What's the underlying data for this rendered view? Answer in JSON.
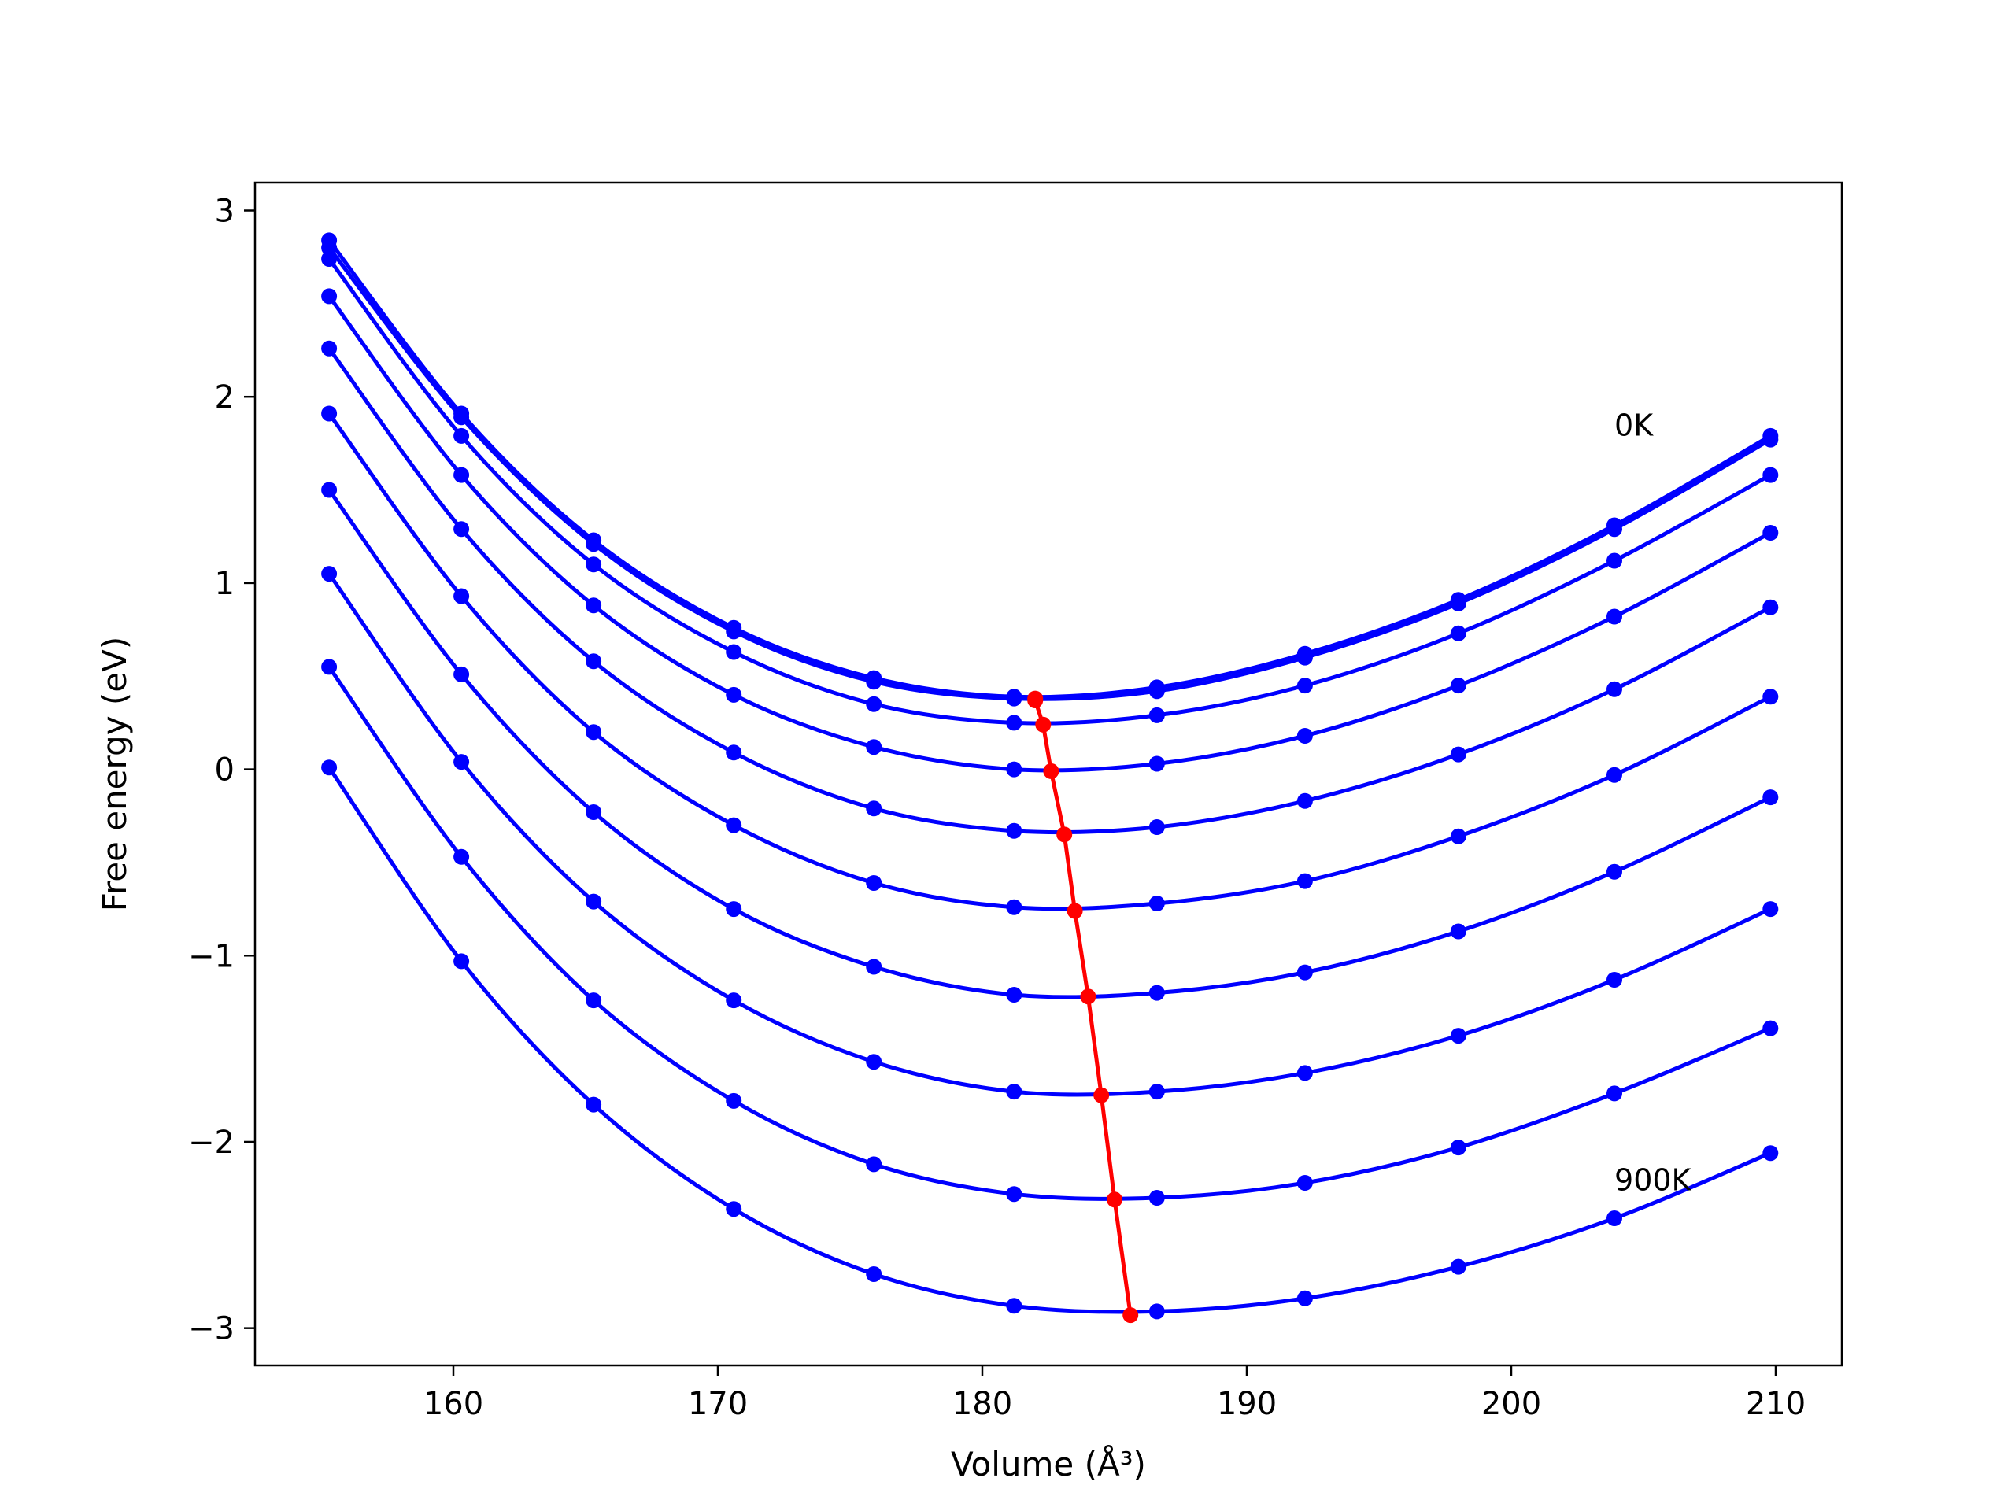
{
  "chart_data": {
    "type": "line",
    "title": "",
    "xlabel": "Volume (Å³)",
    "ylabel": "Free energy (eV)",
    "xlim": [
      152.5,
      212.5
    ],
    "ylim": [
      -3.2,
      3.15
    ],
    "xticks": [
      160,
      170,
      180,
      190,
      200,
      210
    ],
    "yticks": [
      -3,
      -2,
      -1,
      0,
      1,
      2,
      3
    ],
    "xtick_labels": [
      "160",
      "170",
      "180",
      "190",
      "200",
      "210"
    ],
    "ytick_labels": [
      "−3",
      "−2",
      "−1",
      "0",
      "1",
      "2",
      "3"
    ],
    "grid": false,
    "legend": "none",
    "colors": {
      "curves": "#0000ff",
      "minima": "#ff0000",
      "axes": "#000000"
    },
    "annotations": [
      {
        "text": "0K",
        "x": 203.9,
        "y": 1.85
      },
      {
        "text": "900K",
        "x": 203.9,
        "y": -2.2
      }
    ],
    "volumes": [
      155.3,
      160.3,
      165.3,
      170.6,
      175.9,
      181.2,
      186.6,
      192.2,
      198.0,
      203.9,
      209.8
    ],
    "series": [
      {
        "values": [
          2.84,
          1.91,
          1.23,
          0.76,
          0.49,
          0.39,
          0.44,
          0.62,
          0.91,
          1.31,
          1.79
        ],
        "minimum": {
          "x": 182.0,
          "y": 0.38
        }
      },
      {
        "values": [
          2.8,
          1.89,
          1.21,
          0.74,
          0.47,
          0.38,
          0.42,
          0.6,
          0.89,
          1.29,
          1.77
        ],
        "minimum": {
          "x": 182.0,
          "y": 0.37
        }
      },
      {
        "values": [
          2.74,
          1.79,
          1.1,
          0.63,
          0.35,
          0.25,
          0.29,
          0.45,
          0.73,
          1.12,
          1.58
        ],
        "minimum": {
          "x": 182.3,
          "y": 0.24
        }
      },
      {
        "values": [
          2.54,
          1.58,
          0.88,
          0.4,
          0.12,
          0.0,
          0.03,
          0.18,
          0.45,
          0.82,
          1.27
        ],
        "minimum": {
          "x": 182.6,
          "y": -0.01
        }
      },
      {
        "values": [
          2.26,
          1.29,
          0.58,
          0.09,
          -0.21,
          -0.33,
          -0.31,
          -0.17,
          0.08,
          0.43,
          0.87
        ],
        "minimum": {
          "x": 183.1,
          "y": -0.35
        }
      },
      {
        "values": [
          1.91,
          0.93,
          0.2,
          -0.3,
          -0.61,
          -0.74,
          -0.72,
          -0.6,
          -0.36,
          -0.03,
          0.39
        ],
        "minimum": {
          "x": 183.5,
          "y": -0.76
        }
      },
      {
        "values": [
          1.5,
          0.51,
          -0.23,
          -0.75,
          -1.06,
          -1.21,
          -1.2,
          -1.09,
          -0.87,
          -0.55,
          -0.15
        ],
        "minimum": {
          "x": 184.0,
          "y": -1.22
        }
      },
      {
        "values": [
          1.05,
          0.04,
          -0.71,
          -1.24,
          -1.57,
          -1.73,
          -1.73,
          -1.63,
          -1.43,
          -1.13,
          -0.75
        ],
        "minimum": {
          "x": 184.5,
          "y": -1.75
        }
      },
      {
        "values": [
          0.55,
          -0.47,
          -1.24,
          -1.78,
          -2.12,
          -2.28,
          -2.3,
          -2.22,
          -2.03,
          -1.74,
          -1.39
        ],
        "minimum": {
          "x": 185.0,
          "y": -2.31
        }
      },
      {
        "values": [
          0.01,
          -1.03,
          -1.8,
          -2.36,
          -2.71,
          -2.88,
          -2.91,
          -2.84,
          -2.67,
          -2.41,
          -2.06
        ],
        "minimum": {
          "x": 185.6,
          "y": -2.93
        }
      }
    ]
  }
}
